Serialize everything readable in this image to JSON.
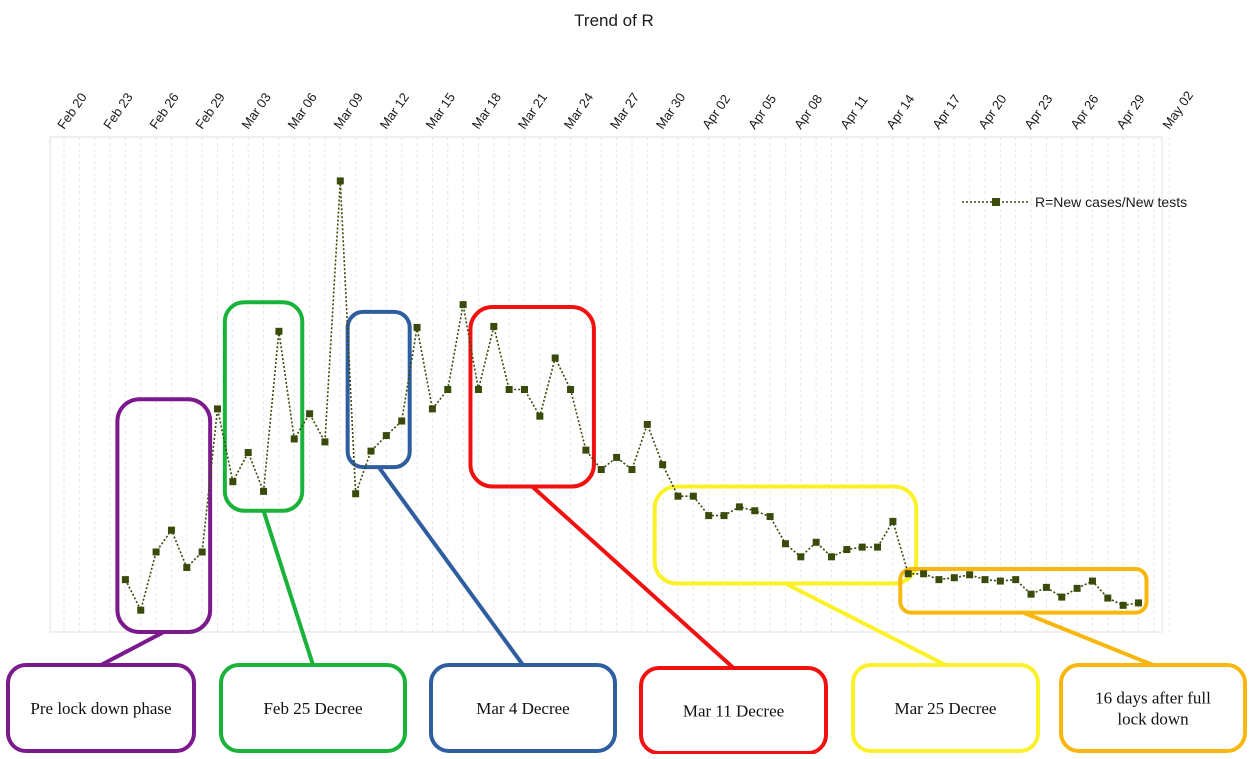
{
  "chart_data": {
    "type": "line",
    "title": "Trend of R",
    "x": [
      "Feb 24",
      "Feb 25",
      "Feb 26",
      "Feb 27",
      "Feb 28",
      "Feb 29",
      "Mar 01",
      "Mar 02",
      "Mar 03",
      "Mar 04",
      "Mar 05",
      "Mar 06",
      "Mar 07",
      "Mar 08",
      "Mar 09",
      "Mar 10",
      "Mar 11",
      "Mar 12",
      "Mar 13",
      "Mar 14",
      "Mar 15",
      "Mar 16",
      "Mar 17",
      "Mar 18",
      "Mar 19",
      "Mar 20",
      "Mar 21",
      "Mar 22",
      "Mar 23",
      "Mar 24",
      "Mar 25",
      "Mar 26",
      "Mar 27",
      "Mar 28",
      "Mar 29",
      "Mar 30",
      "Mar 31",
      "Apr 01",
      "Apr 02",
      "Apr 03",
      "Apr 04",
      "Apr 05",
      "Apr 06",
      "Apr 07",
      "Apr 08",
      "Apr 09",
      "Apr 10",
      "Apr 11",
      "Apr 12",
      "Apr 13",
      "Apr 14",
      "Apr 15",
      "Apr 16",
      "Apr 17",
      "Apr 18",
      "Apr 19",
      "Apr 20",
      "Apr 21",
      "Apr 22",
      "Apr 23",
      "Apr 24",
      "Apr 25",
      "Apr 26",
      "Apr 27",
      "Apr 28",
      "Apr 29",
      "Apr 30"
    ],
    "series": [
      {
        "name": "R=New cases/New tests",
        "color": "#3a4a0a",
        "values": [
          0.108,
          0.045,
          0.165,
          0.21,
          0.133,
          0.165,
          0.46,
          0.31,
          0.37,
          0.29,
          0.62,
          0.398,
          0.45,
          0.392,
          0.93,
          0.285,
          0.373,
          0.405,
          0.435,
          0.628,
          0.46,
          0.5,
          0.675,
          0.5,
          0.63,
          0.5,
          0.5,
          0.445,
          0.565,
          0.5,
          0.375,
          0.335,
          0.36,
          0.335,
          0.428,
          0.345,
          0.28,
          0.28,
          0.24,
          0.24,
          0.258,
          0.25,
          0.238,
          0.182,
          0.155,
          0.185,
          0.155,
          0.17,
          0.175,
          0.175,
          0.228,
          0.12,
          0.12,
          0.108,
          0.112,
          0.118,
          0.108,
          0.105,
          0.108,
          0.078,
          0.092,
          0.072,
          0.09,
          0.105,
          0.07,
          0.055,
          0.06
        ]
      }
    ],
    "x_ticks": [
      "Feb 20",
      "Feb 23",
      "Feb 26",
      "Feb 29",
      "Mar 03",
      "Mar 06",
      "Mar 09",
      "Mar 12",
      "Mar 15",
      "Mar 18",
      "Mar 21",
      "Mar 24",
      "Mar 27",
      "Mar 30",
      "Apr 02",
      "Apr 05",
      "Apr 08",
      "Apr 11",
      "Apr 14",
      "Apr 17",
      "Apr 20",
      "Apr 23",
      "Apr 26",
      "Apr 29",
      "May 02"
    ],
    "x_axis_position": "top",
    "y_axis_labels": "none",
    "grid": "vertical-dashed",
    "legend_position": "top-right",
    "annotations": [
      {
        "label": "Pre lock down phase",
        "color": "#7b1a8c",
        "from": "Feb 24",
        "to": "Feb 29",
        "y_range": [
          0.0,
          0.48
        ]
      },
      {
        "label": "Feb 25 Decree",
        "color": "#1ab23a",
        "from": "Mar 02",
        "to": "Mar 06",
        "y_range": [
          0.25,
          0.68
        ]
      },
      {
        "label": "Mar 4 Decree",
        "color": "#2f5ea0",
        "from": "Mar 10",
        "to": "Mar 13",
        "y_range": [
          0.34,
          0.66
        ]
      },
      {
        "label": "Mar 11 Decree",
        "color": "#f21111",
        "from": "Mar 18",
        "to": "Mar 25",
        "y_range": [
          0.3,
          0.67
        ]
      },
      {
        "label": "Mar 25 Decree",
        "color": "#fbf127",
        "from": "Mar 30",
        "to": "Apr 15",
        "y_range": [
          0.1,
          0.3
        ]
      },
      {
        "label": "16 days after full lock down",
        "color": "#f7b70c",
        "from": "Apr 15",
        "to": "Apr 30",
        "y_range": [
          0.04,
          0.13
        ]
      }
    ]
  }
}
